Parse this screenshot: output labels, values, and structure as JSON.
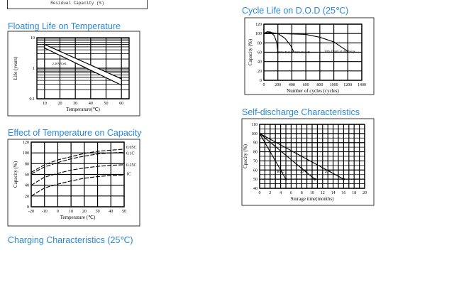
{
  "top_fragment": {
    "label": "Residual Capacity (%)"
  },
  "sections": {
    "floating": "Floating Life on Temperature",
    "effect": "Effect of Temperature on Capacity",
    "charging": "Charging Characteristics (25℃)",
    "cycle": "Cycle Life on D.O.D (25℃)",
    "self": "Self-discharge Characteristics"
  },
  "chart_data": [
    {
      "id": "floating",
      "type": "area",
      "title": "Floating Life on Temperature",
      "xlabel": "Temperature(℃)",
      "ylabel": "Life (years)",
      "xlim": [
        5,
        65
      ],
      "ylim": [
        0.1,
        10
      ],
      "yscale": "log",
      "grid": true,
      "xticks": [
        10,
        20,
        30,
        40,
        50,
        60
      ],
      "yticks": [
        0.1,
        1,
        10
      ],
      "band": {
        "name": "2.30V/Cell",
        "upper": [
          [
            10,
            6
          ],
          [
            60,
            0.45
          ]
        ],
        "lower": [
          [
            10,
            4.6
          ],
          [
            60,
            0.28
          ]
        ]
      },
      "annotations": [
        {
          "text": "2.30V/Cell",
          "x": 15,
          "y": 1.3
        }
      ]
    },
    {
      "id": "effect",
      "type": "line",
      "title": "Effect of Temperature on Capacity",
      "xlabel": "Temperature (℃)",
      "ylabel": "Capacity (%)",
      "xlim": [
        -20,
        50
      ],
      "ylim": [
        0,
        120
      ],
      "grid": true,
      "xticks": [
        -20,
        -10,
        0,
        10,
        20,
        30,
        40,
        50
      ],
      "yticks": [
        0,
        20,
        40,
        60,
        80,
        100,
        120
      ],
      "series": [
        {
          "name": "0.05C",
          "points": [
            [
              -20,
              64
            ],
            [
              -10,
              78
            ],
            [
              0,
              87
            ],
            [
              10,
              93
            ],
            [
              20,
              99
            ],
            [
              30,
              103
            ],
            [
              40,
              105
            ],
            [
              50,
              107
            ]
          ]
        },
        {
          "name": "0.1C",
          "points": [
            [
              -20,
              61
            ],
            [
              -10,
              74
            ],
            [
              0,
              82
            ],
            [
              10,
              89
            ],
            [
              20,
              94
            ],
            [
              30,
              98
            ],
            [
              40,
              100
            ],
            [
              50,
              101
            ]
          ]
        },
        {
          "name": "0.25C",
          "points": [
            [
              -20,
              40
            ],
            [
              -10,
              55
            ],
            [
              0,
              62
            ],
            [
              10,
              68
            ],
            [
              20,
              72
            ],
            [
              30,
              75
            ],
            [
              40,
              77
            ],
            [
              50,
              78
            ]
          ]
        },
        {
          "name": "1C",
          "points": [
            [
              -20,
              20
            ],
            [
              -10,
              35
            ],
            [
              0,
              42
            ],
            [
              10,
              48
            ],
            [
              20,
              53
            ],
            [
              30,
              56
            ],
            [
              40,
              58
            ],
            [
              50,
              59
            ]
          ]
        }
      ]
    },
    {
      "id": "cycle",
      "type": "line",
      "title": "Cycle Life on D.O.D (25℃)",
      "xlabel": "Number of cycles (cycles)",
      "ylabel": "Capacity (%)",
      "xlim": [
        0,
        1400
      ],
      "ylim": [
        0,
        120
      ],
      "grid": true,
      "xticks": [
        0,
        200,
        400,
        600,
        800,
        1000,
        1200,
        1400
      ],
      "yticks": [
        0,
        20,
        40,
        60,
        80,
        100,
        120
      ],
      "series": [
        {
          "name": "100% D.O.D",
          "points": [
            [
              0,
              100
            ],
            [
              50,
              104
            ],
            [
              100,
              103
            ],
            [
              150,
              95
            ],
            [
              185,
              80
            ],
            [
              200,
              60
            ]
          ]
        },
        {
          "name": "50% D.O.D",
          "points": [
            [
              0,
              101
            ],
            [
              100,
              102
            ],
            [
              200,
              100
            ],
            [
              300,
              90
            ],
            [
              380,
              75
            ],
            [
              430,
              60
            ]
          ]
        },
        {
          "name": "30% Depth of discharge",
          "points": [
            [
              0,
              100
            ],
            [
              200,
              100
            ],
            [
              600,
              98
            ],
            [
              800,
              92
            ],
            [
              1000,
              82
            ],
            [
              1200,
              62
            ]
          ]
        }
      ]
    },
    {
      "id": "self",
      "type": "line",
      "title": "Self-discharge Characteristics",
      "xlabel": "Storage time(months)",
      "ylabel": "Cpacity (%)",
      "xlim": [
        0,
        20
      ],
      "ylim": [
        40,
        110
      ],
      "grid": true,
      "xticks": [
        0,
        2,
        4,
        6,
        8,
        10,
        12,
        14,
        16,
        18,
        20
      ],
      "yticks": [
        40,
        50,
        60,
        70,
        80,
        90,
        100,
        110
      ],
      "series": [
        {
          "name": "40℃",
          "points": [
            [
              0,
              100
            ],
            [
              5,
              50
            ]
          ],
          "label_at": [
            3.2,
            57
          ]
        },
        {
          "name": "30℃",
          "points": [
            [
              0,
              100
            ],
            [
              10.5,
              50
            ]
          ],
          "label_at": [
            7.7,
            57
          ]
        },
        {
          "name": "20℃",
          "points": [
            [
              0,
              100
            ],
            [
              16,
              50
            ]
          ],
          "label_at": [
            12.4,
            57
          ]
        }
      ]
    }
  ]
}
